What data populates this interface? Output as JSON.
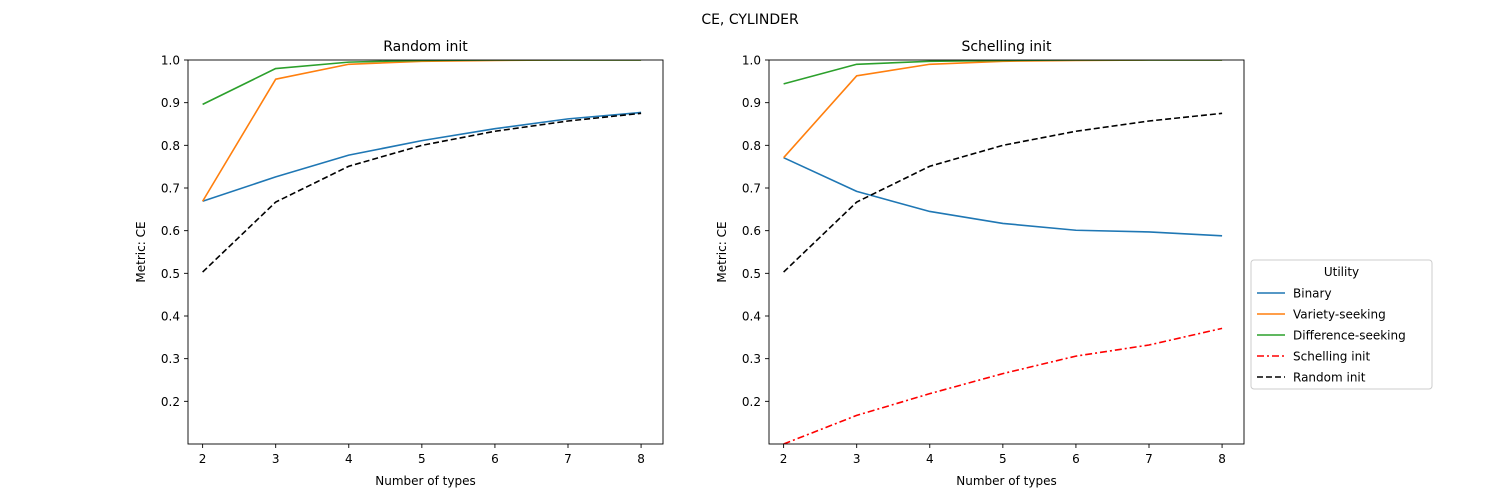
{
  "figure": {
    "suptitle": "CE, CYLINDER"
  },
  "chart_data": [
    {
      "type": "line",
      "title": "Random init",
      "xlabel": "Number of types",
      "ylabel": "Metric: CE",
      "xlim": [
        1.8,
        8.3
      ],
      "ylim": [
        0.1,
        1.0
      ],
      "x_ticks": [
        2,
        3,
        4,
        5,
        6,
        7,
        8
      ],
      "y_ticks": [
        0.2,
        0.3,
        0.4,
        0.5,
        0.6,
        0.7,
        0.8,
        0.9,
        1.0
      ],
      "x_tick_labels": [
        "2",
        "3",
        "4",
        "5",
        "6",
        "7",
        "8"
      ],
      "y_tick_labels": [
        "0.2",
        "0.3",
        "0.4",
        "0.5",
        "0.6",
        "0.7",
        "0.8",
        "0.9",
        "1.0"
      ],
      "x": [
        2,
        3,
        4,
        5,
        6,
        7,
        8
      ],
      "series": [
        {
          "name": "Binary",
          "color": "#1f77b4",
          "dash": "solid",
          "values": [
            0.669,
            0.726,
            0.777,
            0.811,
            0.839,
            0.862,
            0.877
          ]
        },
        {
          "name": "Variety-seeking",
          "color": "#ff7f0e",
          "dash": "solid",
          "values": [
            0.669,
            0.955,
            0.99,
            0.997,
            0.999,
            1.0,
            1.0
          ]
        },
        {
          "name": "Difference-seeking",
          "color": "#2ca02c",
          "dash": "solid",
          "values": [
            0.896,
            0.98,
            0.995,
            0.999,
            1.0,
            1.0,
            1.0
          ]
        },
        {
          "name": "Random init",
          "color": "#000000",
          "dash": "dashed",
          "values": [
            0.503,
            0.667,
            0.751,
            0.8,
            0.833,
            0.857,
            0.875
          ]
        }
      ]
    },
    {
      "type": "line",
      "title": "Schelling init",
      "xlabel": "Number of types",
      "ylabel": "Metric: CE",
      "xlim": [
        1.8,
        8.3
      ],
      "ylim": [
        0.1,
        1.0
      ],
      "x_ticks": [
        2,
        3,
        4,
        5,
        6,
        7,
        8
      ],
      "y_ticks": [
        0.2,
        0.3,
        0.4,
        0.5,
        0.6,
        0.7,
        0.8,
        0.9,
        1.0
      ],
      "x_tick_labels": [
        "2",
        "3",
        "4",
        "5",
        "6",
        "7",
        "8"
      ],
      "y_tick_labels": [
        "0.2",
        "0.3",
        "0.4",
        "0.5",
        "0.6",
        "0.7",
        "0.8",
        "0.9",
        "1.0"
      ],
      "x": [
        2,
        3,
        4,
        5,
        6,
        7,
        8
      ],
      "series": [
        {
          "name": "Binary",
          "color": "#1f77b4",
          "dash": "solid",
          "values": [
            0.771,
            0.692,
            0.645,
            0.617,
            0.601,
            0.597,
            0.588
          ]
        },
        {
          "name": "Variety-seeking",
          "color": "#ff7f0e",
          "dash": "solid",
          "values": [
            0.771,
            0.963,
            0.99,
            0.997,
            0.999,
            1.0,
            1.0
          ]
        },
        {
          "name": "Difference-seeking",
          "color": "#2ca02c",
          "dash": "solid",
          "values": [
            0.944,
            0.99,
            0.997,
            0.999,
            1.0,
            1.0,
            1.0
          ]
        },
        {
          "name": "Schelling init",
          "color": "#ff0000",
          "dash": "dashdot",
          "values": [
            0.1,
            0.167,
            0.218,
            0.265,
            0.306,
            0.332,
            0.371
          ]
        },
        {
          "name": "Random init",
          "color": "#000000",
          "dash": "dashed",
          "values": [
            0.503,
            0.667,
            0.751,
            0.8,
            0.833,
            0.857,
            0.875
          ]
        }
      ]
    }
  ],
  "legend": {
    "title": "Utility",
    "placement": "right",
    "entries": [
      {
        "name": "Binary",
        "color": "#1f77b4",
        "dash": "solid"
      },
      {
        "name": "Variety-seeking",
        "color": "#ff7f0e",
        "dash": "solid"
      },
      {
        "name": "Difference-seeking",
        "color": "#2ca02c",
        "dash": "solid"
      },
      {
        "name": "Schelling init",
        "color": "#ff0000",
        "dash": "dashdot"
      },
      {
        "name": "Random init",
        "color": "#000000",
        "dash": "dashed"
      }
    ]
  }
}
